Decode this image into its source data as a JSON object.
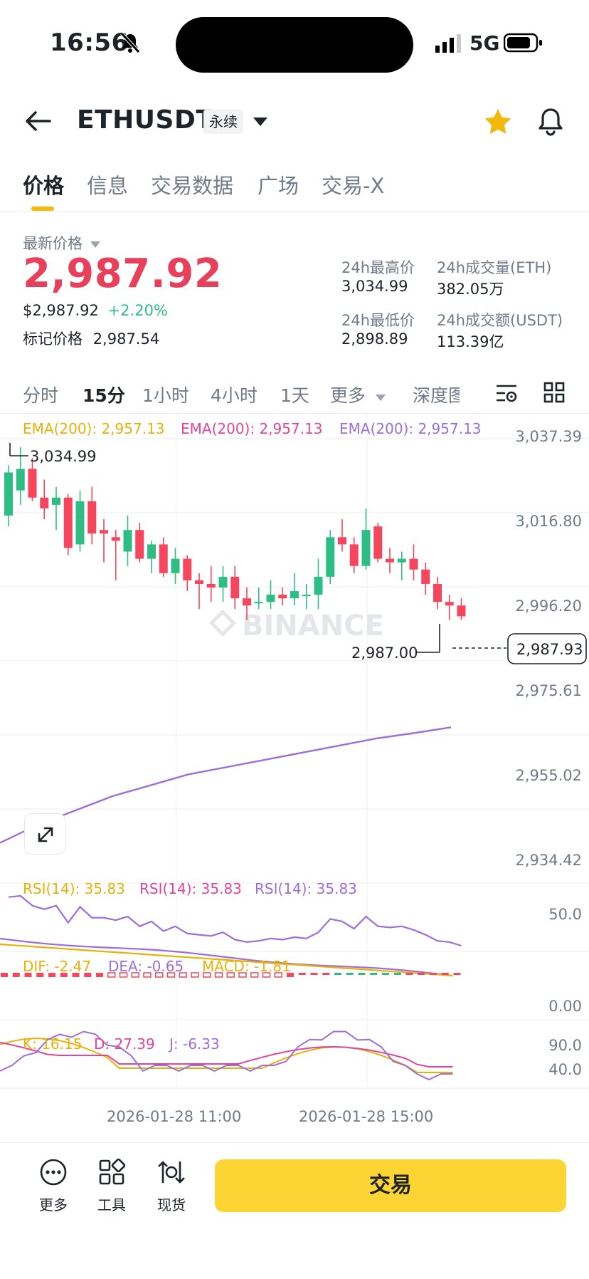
{
  "status_bar": {
    "time": "16:56",
    "network": "5G"
  },
  "header": {
    "symbol": "ETHUSDT",
    "badge": "永续"
  },
  "tabs": [
    "价格",
    "信息",
    "交易数据",
    "广场",
    "交易-X"
  ],
  "price": {
    "label": "最新价格",
    "last": "2,987.92",
    "usd": "$2,987.92",
    "change": "+2.20%",
    "mark_label": "标记价格",
    "mark_value": "2,987.54"
  },
  "stats": {
    "high_label": "24h最高价",
    "high": "3,034.99",
    "vol_label": "24h成交量(ETH)",
    "vol": "382.05万",
    "low_label": "24h最低价",
    "low": "2,898.89",
    "amt_label": "24h成交额(USDT)",
    "amt": "113.39亿"
  },
  "intervals": [
    "分时",
    "15分",
    "1小时",
    "4小时",
    "1天",
    "更多",
    "深度图"
  ],
  "chart": {
    "ema1": "EMA(200): 2,957.13",
    "ema2": "EMA(200): 2,957.13",
    "ema3": "EMA(200): 2,957.13",
    "y_ticks": [
      "3,037.39",
      "3,016.80",
      "2,996.20",
      "2,975.61",
      "2,955.02",
      "2,934.42"
    ],
    "high_marker": "3,034.99",
    "low_marker": "2,987.00",
    "current_price": "2,987.93",
    "watermark": "BINANCE",
    "rsi1": "RSI(14): 35.83",
    "rsi2": "RSI(14): 35.83",
    "rsi3": "RSI(14): 35.83",
    "rsi_tick": "50.0",
    "dif": "DIF: -2.47",
    "dea": "DEA: -0.65",
    "macd": "MACD: -1.81",
    "macd_tick": "0.00",
    "k": "K: 16.15",
    "d": "D: 27.39",
    "j": "J: -6.33",
    "kdj_tick1": "90.0",
    "kdj_tick2": "40.0",
    "x_ticks": [
      "2026-01-28 11:00",
      "2026-01-28 15:00"
    ]
  },
  "chart_data": {
    "type": "candlestick",
    "candles": [
      {
        "o": 3016,
        "h": 3030,
        "l": 3013,
        "c": 3028
      },
      {
        "o": 3023,
        "h": 3035,
        "l": 3019,
        "c": 3029
      },
      {
        "o": 3029,
        "h": 3032,
        "l": 3020,
        "c": 3021
      },
      {
        "o": 3021,
        "h": 3026,
        "l": 3015,
        "c": 3018
      },
      {
        "o": 3019,
        "h": 3024,
        "l": 3012,
        "c": 3021
      },
      {
        "o": 3021,
        "h": 3022,
        "l": 3005,
        "c": 3007
      },
      {
        "o": 3008,
        "h": 3023,
        "l": 3006,
        "c": 3020
      },
      {
        "o": 3020,
        "h": 3024,
        "l": 3008,
        "c": 3011
      },
      {
        "o": 3012,
        "h": 3015,
        "l": 3003,
        "c": 3011
      },
      {
        "o": 3010,
        "h": 3012,
        "l": 2998,
        "c": 3009
      },
      {
        "o": 3006,
        "h": 3016,
        "l": 3002,
        "c": 3012
      },
      {
        "o": 3012,
        "h": 3014,
        "l": 3003,
        "c": 3004
      },
      {
        "o": 3004,
        "h": 3009,
        "l": 3000,
        "c": 3008
      },
      {
        "o": 3008,
        "h": 3010,
        "l": 2999,
        "c": 3000
      },
      {
        "o": 3000,
        "h": 3007,
        "l": 2997,
        "c": 3004
      },
      {
        "o": 3004,
        "h": 3005,
        "l": 2995,
        "c": 2998
      },
      {
        "o": 2998,
        "h": 3000,
        "l": 2990,
        "c": 2997
      },
      {
        "o": 2997,
        "h": 3002,
        "l": 2992,
        "c": 2996
      },
      {
        "o": 2996,
        "h": 3002,
        "l": 2992,
        "c": 2999
      },
      {
        "o": 2999,
        "h": 3002,
        "l": 2990,
        "c": 2993
      },
      {
        "o": 2993,
        "h": 2996,
        "l": 2987,
        "c": 2991
      },
      {
        "o": 2992,
        "h": 2996,
        "l": 2990,
        "c": 2992
      },
      {
        "o": 2992,
        "h": 2998,
        "l": 2990,
        "c": 2994
      },
      {
        "o": 2994,
        "h": 2996,
        "l": 2991,
        "c": 2993
      },
      {
        "o": 2993,
        "h": 3000,
        "l": 2991,
        "c": 2995
      },
      {
        "o": 2994,
        "h": 2997,
        "l": 2990,
        "c": 2994
      },
      {
        "o": 2994,
        "h": 3004,
        "l": 2990,
        "c": 2999
      },
      {
        "o": 2999,
        "h": 3012,
        "l": 2997,
        "c": 3010
      },
      {
        "o": 3010,
        "h": 3015,
        "l": 3006,
        "c": 3008
      },
      {
        "o": 3008,
        "h": 3010,
        "l": 3000,
        "c": 3002
      },
      {
        "o": 3002,
        "h": 3018,
        "l": 3001,
        "c": 3012
      },
      {
        "o": 3013,
        "h": 3014,
        "l": 3003,
        "c": 3004
      },
      {
        "o": 3004,
        "h": 3007,
        "l": 3000,
        "c": 3003
      },
      {
        "o": 3003,
        "h": 3006,
        "l": 2998,
        "c": 3004
      },
      {
        "o": 3004,
        "h": 3008,
        "l": 2998,
        "c": 3001
      },
      {
        "o": 3001,
        "h": 3003,
        "l": 2994,
        "c": 2997
      },
      {
        "o": 2997,
        "h": 2999,
        "l": 2990,
        "c": 2992
      },
      {
        "o": 2992,
        "h": 2994,
        "l": 2987,
        "c": 2991
      },
      {
        "o": 2991,
        "h": 2993,
        "l": 2987,
        "c": 2988
      }
    ],
    "y_range": [
      2930,
      3040
    ],
    "ema200": [
      2925,
      2930,
      2934,
      2938,
      2941,
      2944,
      2946,
      2948,
      2950,
      2952,
      2954,
      2955.5,
      2957.13
    ]
  },
  "bottom_bar": {
    "more": "更多",
    "tools": "工具",
    "spot": "现货",
    "trade": "交易"
  },
  "colors": {
    "up": "#2ebd85",
    "down": "#f6465d",
    "accent": "#fcd535",
    "ema": "#9b6fd8",
    "star": "#f0b90b"
  }
}
